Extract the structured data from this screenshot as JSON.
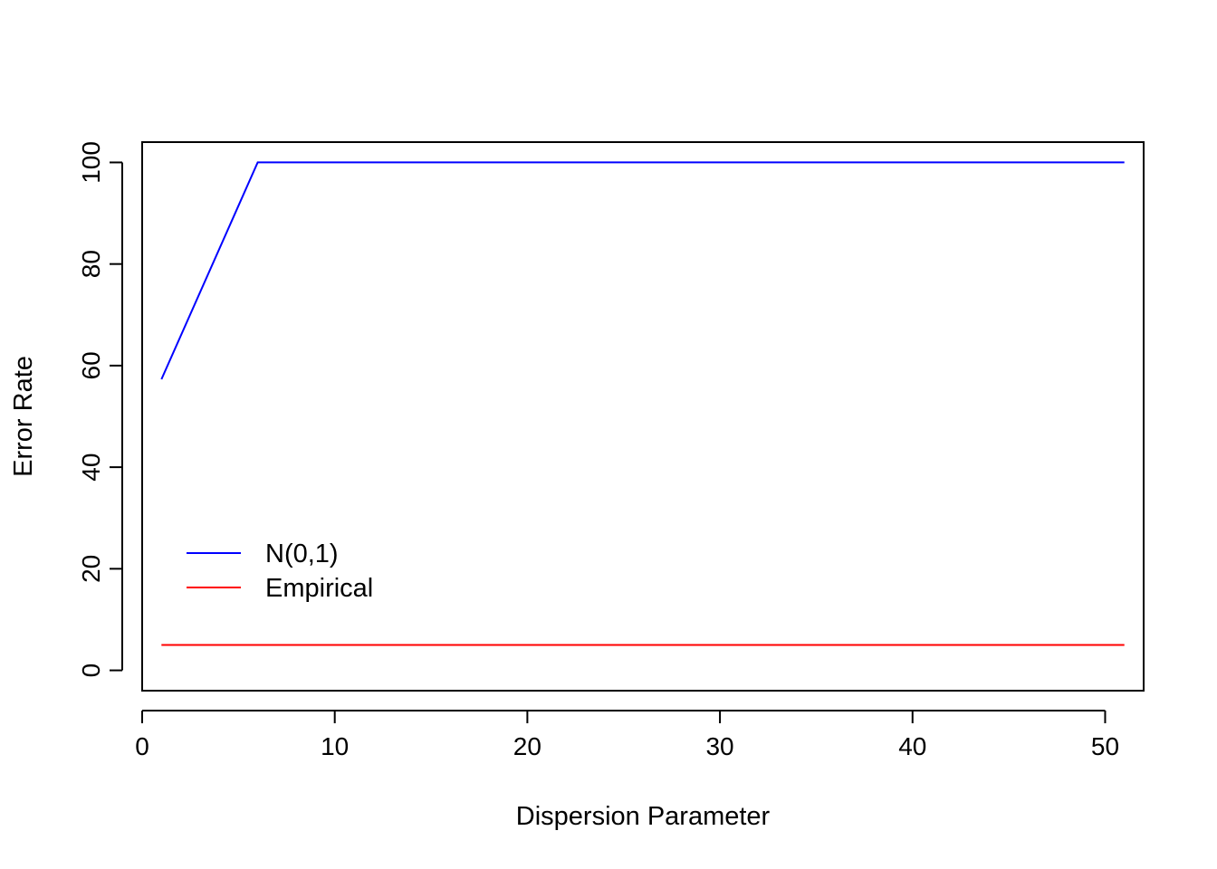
{
  "chart_data": {
    "type": "line",
    "title": "",
    "xlabel": "Dispersion Parameter",
    "ylabel": "Error Rate",
    "xlim": [
      0,
      52
    ],
    "ylim": [
      -4,
      104
    ],
    "xticks": [
      0,
      10,
      20,
      30,
      40,
      50
    ],
    "yticks": [
      0,
      20,
      40,
      60,
      80,
      100
    ],
    "grid": false,
    "legend_position": "bottom-left",
    "series": [
      {
        "name": "N(0,1)",
        "color": "#0000ff",
        "x": [
          1,
          6,
          51
        ],
        "y": [
          57.3,
          100,
          100
        ]
      },
      {
        "name": "Empirical",
        "color": "#ff0000",
        "x": [
          1,
          51
        ],
        "y": [
          5,
          5
        ]
      }
    ]
  }
}
